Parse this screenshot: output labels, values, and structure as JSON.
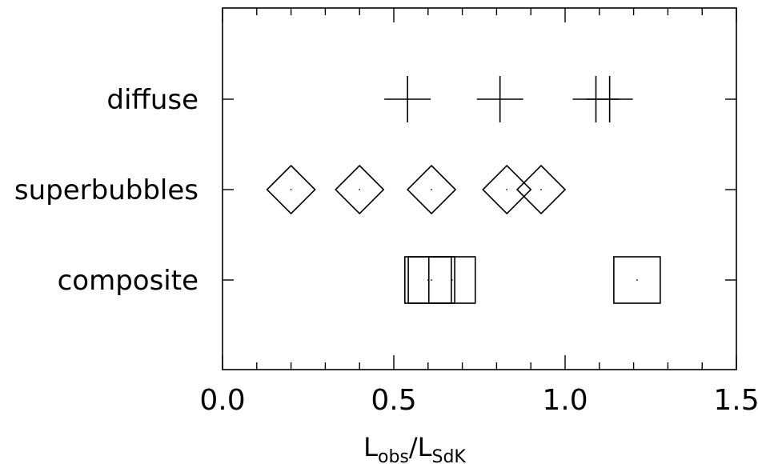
{
  "chart_data": {
    "type": "scatter",
    "title": "",
    "xlabel": {
      "main1": "L",
      "sub1": "obs",
      "slash": "/",
      "main2": "L",
      "sub2": "SdK"
    },
    "ylabel": "",
    "xlim": [
      0.0,
      1.5
    ],
    "x_ticks": [
      0.0,
      0.5,
      1.0,
      1.5
    ],
    "x_tick_labels": [
      "0.0",
      "0.5",
      "1.0",
      "1.5"
    ],
    "x_minor_step": 0.1,
    "categories": [
      "composite",
      "superbubbles",
      "diffuse"
    ],
    "grid": false,
    "legend": "none",
    "series": [
      {
        "category": "diffuse",
        "marker": "plus",
        "x": [
          0.54,
          0.81,
          1.09,
          1.13
        ]
      },
      {
        "category": "superbubbles",
        "marker": "diamond",
        "x": [
          0.2,
          0.4,
          0.61,
          0.83,
          0.93
        ]
      },
      {
        "category": "composite",
        "marker": "square",
        "x": [
          0.6,
          0.61,
          0.67,
          1.21
        ]
      }
    ]
  }
}
